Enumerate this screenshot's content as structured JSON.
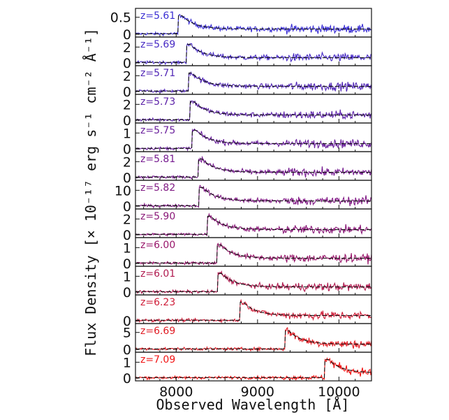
{
  "chart_data": {
    "type": "line",
    "xlabel": "Observed Wavelength [Å]",
    "ylabel": "Flux Density [× 10⁻¹⁷ erg s⁻¹ cm⁻² Å⁻¹]",
    "xlim": [
      7500,
      10400
    ],
    "x_ticks": [
      8000,
      9000,
      10000
    ],
    "grid": false,
    "panels": [
      {
        "label": "z=5.61",
        "z": 5.61,
        "color": "#3b2fd3",
        "ymax": 0.7,
        "y_ticks": [
          "0.5",
          "0"
        ],
        "y_tick_values": [
          0.5,
          0
        ]
      },
      {
        "label": "z=5.69",
        "z": 5.69,
        "color": "#4629c4",
        "ymax": 3.0,
        "y_ticks": [
          "2",
          "0"
        ],
        "y_tick_values": [
          2,
          0
        ]
      },
      {
        "label": "z=5.71",
        "z": 5.71,
        "color": "#5126b6",
        "ymax": 3.0,
        "y_ticks": [
          "2",
          "0"
        ],
        "y_tick_values": [
          2,
          0
        ]
      },
      {
        "label": "z=5.73",
        "z": 5.73,
        "color": "#5c22a8",
        "ymax": 3.0,
        "y_ticks": [
          "2",
          "0"
        ],
        "y_tick_values": [
          2,
          0
        ]
      },
      {
        "label": "z=5.75",
        "z": 5.75,
        "color": "#6a1f9c",
        "ymax": 1.5,
        "y_ticks": [
          "1",
          "0"
        ],
        "y_tick_values": [
          1,
          0
        ]
      },
      {
        "label": "z=5.81",
        "z": 5.81,
        "color": "#761b90",
        "ymax": 3.0,
        "y_ticks": [
          "2",
          "0"
        ],
        "y_tick_values": [
          2,
          0
        ]
      },
      {
        "label": "z=5.82",
        "z": 5.82,
        "color": "#801a84",
        "ymax": 15,
        "y_ticks": [
          "10",
          "0"
        ],
        "y_tick_values": [
          10,
          0
        ]
      },
      {
        "label": "z=5.90",
        "z": 5.9,
        "color": "#8a1878",
        "ymax": 3.0,
        "y_ticks": [
          "2",
          "0"
        ],
        "y_tick_values": [
          2,
          0
        ]
      },
      {
        "label": "z=6.00",
        "z": 6.0,
        "color": "#98166a",
        "ymax": 1.5,
        "y_ticks": [
          "1",
          "0"
        ],
        "y_tick_values": [
          1,
          0
        ]
      },
      {
        "label": "z=6.01",
        "z": 6.01,
        "color": "#b01a4f",
        "ymax": 1.5,
        "y_ticks": [
          "1",
          "0"
        ],
        "y_tick_values": [
          1,
          0
        ]
      },
      {
        "label": "z=6.23",
        "z": 6.23,
        "color": "#cf1d38",
        "ymax": 1.5,
        "y_ticks": [
          "0"
        ],
        "y_tick_values": [
          0
        ]
      },
      {
        "label": "z=6.69",
        "z": 6.69,
        "color": "#e01c24",
        "ymax": 7,
        "y_ticks": [
          "5",
          "0"
        ],
        "y_tick_values": [
          5,
          0
        ]
      },
      {
        "label": "z=7.09",
        "z": 7.09,
        "color": "#f21414",
        "ymax": 1.5,
        "y_ticks": [
          "1",
          "0"
        ],
        "y_tick_values": [
          1,
          0
        ]
      }
    ]
  }
}
